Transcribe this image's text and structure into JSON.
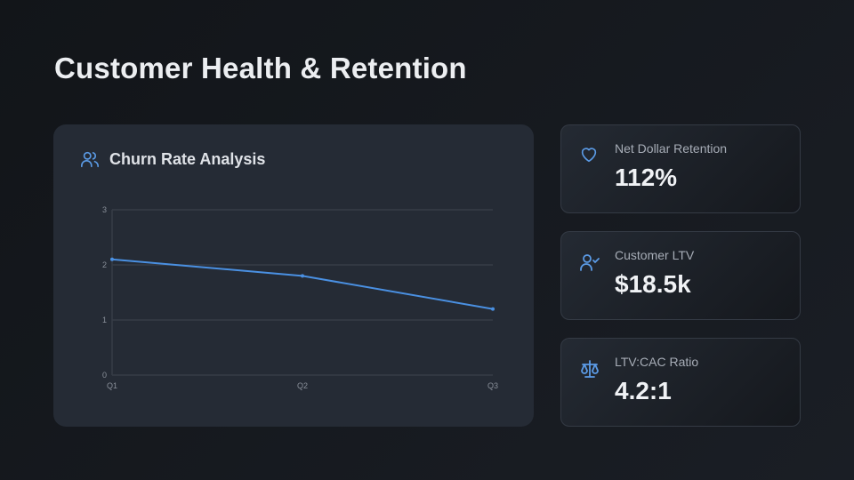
{
  "page": {
    "title": "Customer Health & Retention"
  },
  "chart_card": {
    "title": "Churn Rate Analysis",
    "icon": "users-icon"
  },
  "chart_data": {
    "type": "line",
    "title": "Churn Rate Analysis",
    "categories": [
      "Q1",
      "Q2",
      "Q3"
    ],
    "series": [
      {
        "values": [
          2.1,
          1.8,
          1.2
        ],
        "color": "#4a90e2"
      }
    ],
    "ylim": [
      0,
      3
    ],
    "yticks": [
      "0",
      "1",
      "2",
      "3"
    ],
    "grid": true,
    "xlabel": "",
    "ylabel": ""
  },
  "kpis": [
    {
      "label": "Net Dollar Retention",
      "value": "112%",
      "icon": "heart-icon"
    },
    {
      "label": "Customer LTV",
      "value": "$18.5k",
      "icon": "user-check-icon"
    },
    {
      "label": "LTV:CAC Ratio",
      "value": "4.2:1",
      "icon": "scale-icon"
    }
  ],
  "colors": {
    "accent": "#4a90e2",
    "card": "#252b35"
  }
}
